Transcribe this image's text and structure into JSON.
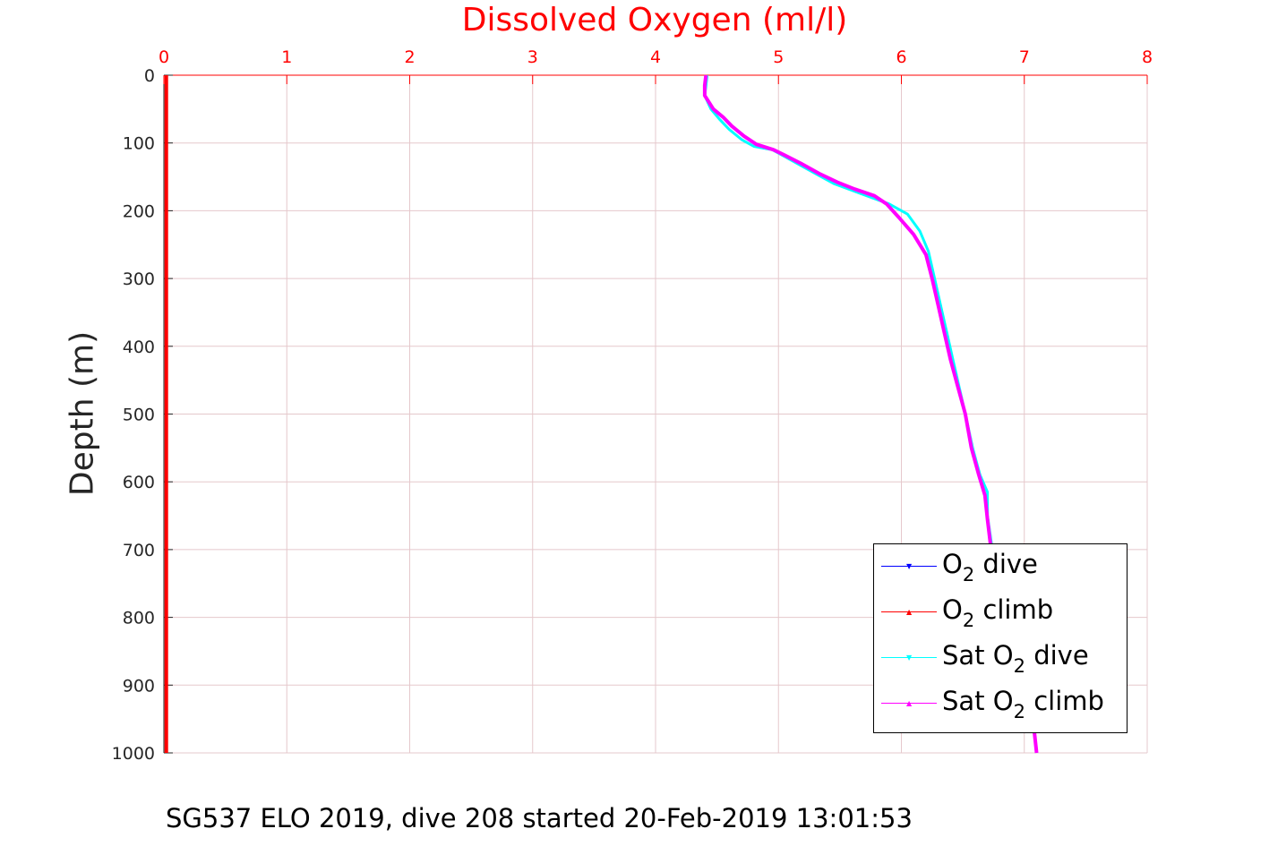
{
  "chart_data": {
    "type": "line",
    "title": "",
    "xlabel": "Dissolved Oxygen (ml/l)",
    "ylabel": "Depth (m)",
    "caption": "SG537 ELO 2019, dive 208 started 20-Feb-2019 13:01:53",
    "xlim": [
      0,
      8
    ],
    "ylim": [
      0,
      1000
    ],
    "y_reversed": true,
    "x_axis_position": "top",
    "grid": true,
    "xticks": [
      "0",
      "1",
      "2",
      "3",
      "4",
      "5",
      "6",
      "7",
      "8"
    ],
    "yticks": [
      "0",
      "100",
      "200",
      "300",
      "400",
      "500",
      "600",
      "700",
      "800",
      "900",
      "1000"
    ],
    "legend_placement": "bottom-right",
    "colors": {
      "o2_dive": "#0000ff",
      "o2_climb": "#ff0000",
      "sat_dive": "#00ffff",
      "sat_climb": "#ff00ff",
      "x_axis": "#ff0000",
      "grid": "#e5c8cc"
    },
    "legend": [
      {
        "pre": "O",
        "sub": "2",
        "post": " dive",
        "marker": "▼",
        "color": "#0000ff"
      },
      {
        "pre": "O",
        "sub": "2",
        "post": " climb",
        "marker": "▲",
        "color": "#ff0000"
      },
      {
        "pre": "Sat O",
        "sub": "2",
        "post": " dive",
        "marker": "▼",
        "color": "#00ffff"
      },
      {
        "pre": "Sat O",
        "sub": "2",
        "post": " climb",
        "marker": "▲",
        "color": "#ff00ff"
      }
    ],
    "series": [
      {
        "name": "O2 dive",
        "key": "o2_dive",
        "x": [
          0.02,
          0.02
        ],
        "y": [
          0,
          1000
        ]
      },
      {
        "name": "O2 climb",
        "key": "o2_climb",
        "x": [
          0.02,
          0.02
        ],
        "y": [
          0,
          1000
        ]
      },
      {
        "name": "Sat O2 dive",
        "key": "sat_dive",
        "x": [
          4.42,
          4.41,
          4.4,
          4.45,
          4.52,
          4.6,
          4.7,
          4.8,
          4.95,
          5.05,
          5.15,
          5.3,
          5.45,
          5.6,
          5.75,
          5.9,
          6.05,
          6.15,
          6.22,
          6.27,
          6.32,
          6.37,
          6.42,
          6.47,
          6.52,
          6.58,
          6.64,
          6.7,
          6.7,
          6.74,
          6.8,
          6.88,
          6.95,
          7.02,
          7.07,
          7.1
        ],
        "y": [
          0,
          15,
          30,
          50,
          65,
          80,
          95,
          105,
          110,
          120,
          130,
          145,
          160,
          170,
          180,
          190,
          205,
          230,
          260,
          300,
          340,
          380,
          420,
          460,
          500,
          550,
          590,
          615,
          650,
          700,
          750,
          800,
          850,
          900,
          950,
          1000
        ]
      },
      {
        "name": "Sat O2 climb",
        "key": "sat_climb",
        "x": [
          4.41,
          4.4,
          4.4,
          4.47,
          4.55,
          4.62,
          4.72,
          4.82,
          4.96,
          5.05,
          5.18,
          5.33,
          5.48,
          5.62,
          5.78,
          5.88,
          5.98,
          6.1,
          6.2,
          6.25,
          6.3,
          6.35,
          6.4,
          6.46,
          6.52,
          6.57,
          6.63,
          6.68,
          6.7,
          6.73,
          6.8,
          6.88,
          6.95,
          7.02,
          7.07,
          7.1
        ],
        "y": [
          0,
          15,
          30,
          50,
          62,
          75,
          90,
          102,
          110,
          118,
          130,
          145,
          158,
          168,
          178,
          190,
          210,
          235,
          265,
          300,
          340,
          380,
          420,
          460,
          500,
          550,
          590,
          620,
          655,
          700,
          750,
          800,
          850,
          900,
          950,
          1000
        ]
      }
    ]
  }
}
